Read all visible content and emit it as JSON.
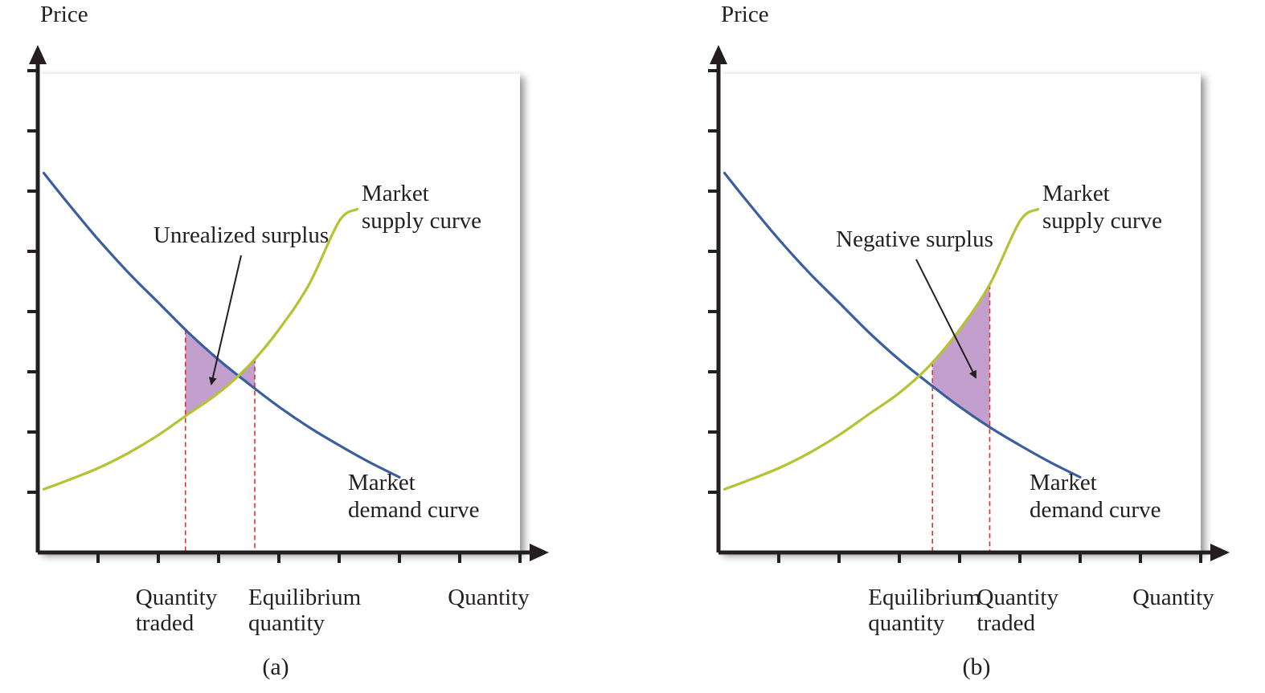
{
  "colors": {
    "axis": "#231f20",
    "demand": "#3a5f9e",
    "supply": "#b5c234",
    "surplus_fill": "#c29fcc",
    "dashed": "#e0312f",
    "panel_bg": "#ffffff",
    "panel_shadow": "#bdbdbd"
  },
  "chart_data": [
    {
      "type": "line",
      "panel_label": "(a)",
      "ylabel": "Price",
      "xlabel": "Quantity",
      "xlim": [
        0,
        8
      ],
      "ylim": [
        0,
        8
      ],
      "x_ticks": [
        1,
        2,
        3,
        4,
        5,
        6,
        7,
        8
      ],
      "y_ticks": [
        1,
        2,
        3,
        4,
        5,
        6,
        7,
        8
      ],
      "x_tick_labels": [
        {
          "x": 2.45,
          "lines": [
            "Quantity",
            "traded"
          ]
        },
        {
          "x": 3.6,
          "lines": [
            "Equilibrium",
            "quantity"
          ]
        }
      ],
      "series": [
        {
          "name": "Market demand curve",
          "name_lines": [
            "Market",
            "demand curve"
          ],
          "x": [
            0.1,
            0.5,
            1.0,
            1.5,
            2.0,
            2.5,
            3.0,
            3.5,
            4.0,
            4.5,
            5.0,
            5.5,
            6.0
          ],
          "y": [
            6.3,
            5.8,
            5.2,
            4.65,
            4.15,
            3.65,
            3.2,
            2.8,
            2.42,
            2.08,
            1.78,
            1.5,
            1.25
          ]
        },
        {
          "name": "Market supply curve",
          "name_lines": [
            "Market",
            "supply curve"
          ],
          "x": [
            0.1,
            0.5,
            1.0,
            1.5,
            2.0,
            2.5,
            3.0,
            3.5,
            4.0,
            4.5,
            5.0,
            5.3
          ],
          "y": [
            1.05,
            1.2,
            1.4,
            1.65,
            1.95,
            2.3,
            2.65,
            3.1,
            3.7,
            4.45,
            5.5,
            5.7
          ]
        }
      ],
      "shaded_region": {
        "label": "Unrealized surplus",
        "x_from": 2.45,
        "x_to": 3.6
      },
      "dashed_lines_x": [
        2.45,
        3.6
      ]
    },
    {
      "type": "line",
      "panel_label": "(b)",
      "ylabel": "Price",
      "xlabel": "Quantity",
      "xlim": [
        0,
        8
      ],
      "ylim": [
        0,
        8
      ],
      "x_ticks": [
        1,
        2,
        3,
        4,
        5,
        6,
        7,
        8
      ],
      "y_ticks": [
        1,
        2,
        3,
        4,
        5,
        6,
        7,
        8
      ],
      "x_tick_labels": [
        {
          "x": 3.55,
          "lines": [
            "Equilibrium",
            "quantity"
          ]
        },
        {
          "x": 4.5,
          "lines": [
            "Quantity",
            "traded"
          ]
        }
      ],
      "series": [
        {
          "name": "Market demand curve",
          "name_lines": [
            "Market",
            "demand curve"
          ],
          "x": [
            0.1,
            0.5,
            1.0,
            1.5,
            2.0,
            2.5,
            3.0,
            3.5,
            4.0,
            4.5,
            5.0,
            5.5,
            6.0
          ],
          "y": [
            6.3,
            5.8,
            5.2,
            4.65,
            4.15,
            3.65,
            3.2,
            2.8,
            2.42,
            2.08,
            1.78,
            1.5,
            1.25
          ]
        },
        {
          "name": "Market supply curve",
          "name_lines": [
            "Market",
            "supply curve"
          ],
          "x": [
            0.1,
            0.5,
            1.0,
            1.5,
            2.0,
            2.5,
            3.0,
            3.5,
            4.0,
            4.5,
            5.0,
            5.3
          ],
          "y": [
            1.05,
            1.2,
            1.4,
            1.65,
            1.95,
            2.3,
            2.65,
            3.1,
            3.7,
            4.45,
            5.5,
            5.7
          ]
        }
      ],
      "shaded_region": {
        "label": "Negative surplus",
        "x_from": 3.55,
        "x_to": 4.5
      },
      "dashed_lines_x": [
        3.55,
        4.5
      ]
    }
  ]
}
